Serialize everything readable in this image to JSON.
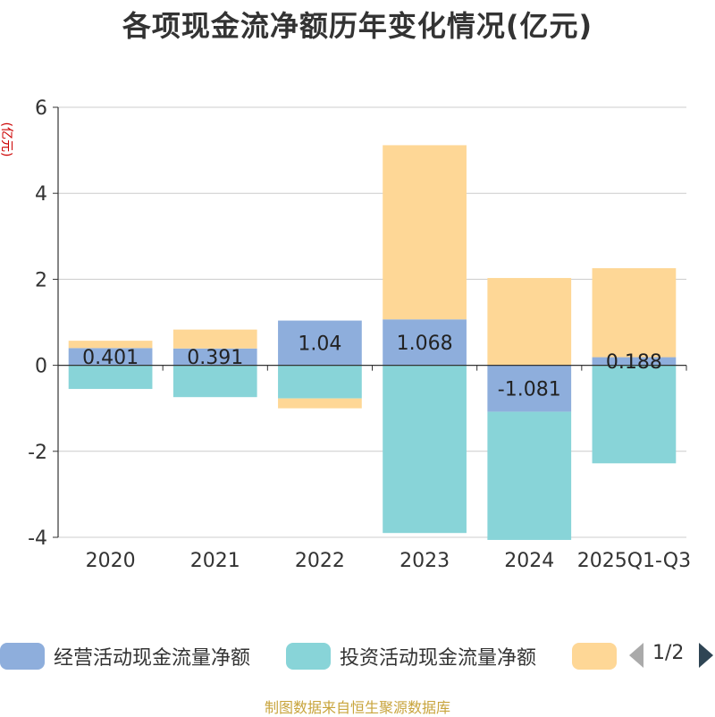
{
  "chart_data": {
    "type": "bar",
    "stacked": true,
    "title": "各项现金流净额历年变化情况(亿元)",
    "ylabel": "(亿元)",
    "categories": [
      "2020",
      "2021",
      "2022",
      "2023",
      "2024",
      "2025Q1-Q3"
    ],
    "ylim": [
      -4,
      6
    ],
    "yticks": [
      -4,
      -2,
      0,
      2,
      4,
      6
    ],
    "ytick_labels": [
      "-4",
      "-2",
      "0",
      "2",
      "4",
      "6"
    ],
    "series": [
      {
        "name": "经营活动现金流量净额",
        "color": "#8eaedc",
        "values": [
          0.401,
          0.391,
          1.04,
          1.068,
          -1.081,
          0.188
        ],
        "labels": [
          "0.401",
          "0.391",
          "1.04",
          "1.068",
          "-1.081",
          "0.188"
        ]
      },
      {
        "name": "投资活动现金流量净额",
        "color": "#88d4d8",
        "values": [
          -0.55,
          -0.74,
          -0.77,
          -3.9,
          -2.98,
          -2.28
        ]
      },
      {
        "name": "",
        "color": "#fed796",
        "values": [
          0.17,
          0.44,
          -0.23,
          4.05,
          2.03,
          2.07
        ]
      }
    ],
    "legend_position": "bottom",
    "grid": true
  },
  "legend": {
    "items": [
      {
        "label": "经营活动现金流量净额",
        "color": "#8eaedc"
      },
      {
        "label": "投资活动现金流量净额",
        "color": "#88d4d8"
      },
      {
        "label": "",
        "color": "#fed796"
      }
    ],
    "page_text": "1/2"
  },
  "footer": {
    "source": "制图数据来自恒生聚源数据库"
  }
}
